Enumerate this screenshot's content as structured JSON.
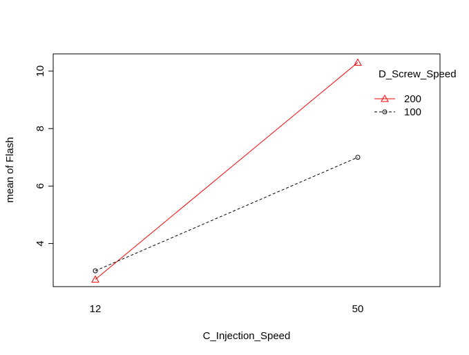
{
  "chart_data": {
    "type": "line",
    "title": "",
    "xlabel": "C_Injection_Speed",
    "ylabel": "mean of  Flash",
    "categories": [
      "12",
      "50"
    ],
    "yticks": [
      4,
      6,
      8,
      10
    ],
    "ylim": [
      2.5,
      10.6
    ],
    "grid": false,
    "legend": {
      "title": "D_Screw_Speed",
      "placement": "top-right",
      "entries": [
        "200",
        "100"
      ]
    },
    "series": [
      {
        "name": "200",
        "values": [
          2.75,
          10.3
        ],
        "color": "#ff0000",
        "line": "solid",
        "marker": "triangle"
      },
      {
        "name": "100",
        "values": [
          3.05,
          7.0
        ],
        "color": "#000000",
        "line": "dashed",
        "marker": "circle"
      }
    ]
  }
}
